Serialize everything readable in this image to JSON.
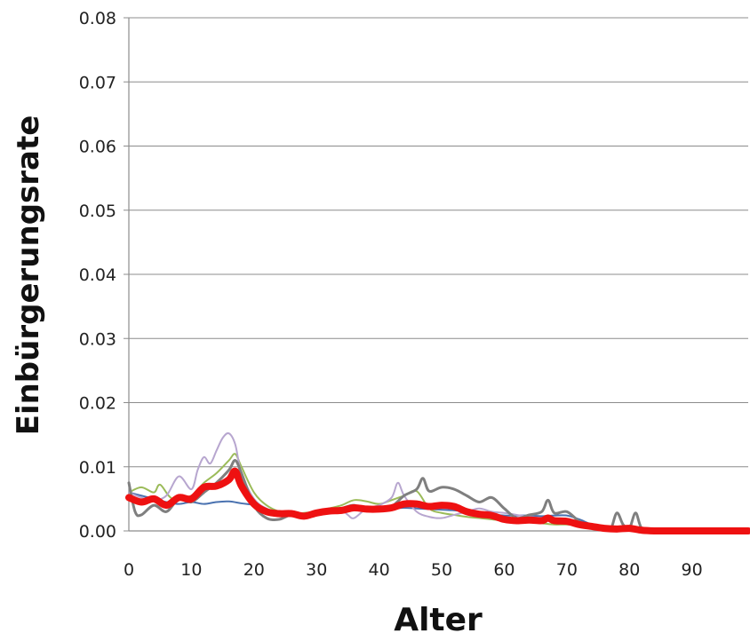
{
  "chart_data": {
    "type": "line",
    "title": "",
    "xlabel": "Alter",
    "ylabel": "Einbürgerungsrate",
    "xlim": [
      0,
      99
    ],
    "ylim": [
      0,
      0.08
    ],
    "grid": true,
    "grid_axis": "y",
    "legend": false,
    "x_ticks": [
      0,
      10,
      20,
      30,
      40,
      50,
      60,
      70,
      80,
      90
    ],
    "x_tick_labels": [
      "0",
      "10",
      "20",
      "30",
      "40",
      "50",
      "60",
      "70",
      "80",
      "90"
    ],
    "y_ticks": [
      0,
      0.01,
      0.02,
      0.03,
      0.04,
      0.05,
      0.06,
      0.07,
      0.08
    ],
    "y_tick_labels": [
      "0.00",
      "0.01",
      "0.02",
      "0.03",
      "0.04",
      "0.05",
      "0.06",
      "0.07",
      "0.08"
    ],
    "series": [
      {
        "color": "#4a72b0",
        "width": 2,
        "x": [
          0,
          2,
          4,
          6,
          8,
          10,
          12,
          14,
          16,
          18,
          20,
          22,
          24,
          26,
          28,
          30,
          32,
          34,
          36,
          38,
          40,
          42,
          44,
          46,
          48,
          50,
          52,
          54,
          56,
          58,
          60,
          62,
          64,
          66,
          68,
          70,
          72,
          74,
          76,
          78,
          80,
          82,
          84,
          86,
          88,
          90,
          95,
          99
        ],
        "y": [
          0.006,
          0.0055,
          0.005,
          0.0045,
          0.0042,
          0.0045,
          0.0042,
          0.0045,
          0.0046,
          0.0043,
          0.004,
          0.003,
          0.0028,
          0.0026,
          0.0027,
          0.0028,
          0.003,
          0.0032,
          0.0033,
          0.0034,
          0.0035,
          0.0035,
          0.0036,
          0.0035,
          0.0034,
          0.0033,
          0.0032,
          0.003,
          0.0028,
          0.0026,
          0.0024,
          0.0024,
          0.0024,
          0.0023,
          0.0024,
          0.0024,
          0.0018,
          0.001,
          0.0006,
          0.0004,
          0.0003,
          0.0002,
          0.0001,
          0.0,
          0.0,
          0.0,
          0.0,
          0.0
        ]
      },
      {
        "color": "#9bbb59",
        "width": 2,
        "x": [
          0,
          2,
          4,
          5,
          7,
          10,
          12,
          14,
          16,
          17,
          18,
          20,
          22,
          24,
          26,
          28,
          30,
          32,
          34,
          36,
          38,
          40,
          42,
          44,
          46,
          48,
          50,
          52,
          54,
          56,
          58,
          60,
          62,
          64,
          66,
          68,
          70,
          72,
          74,
          76,
          78,
          80,
          82,
          84,
          86,
          88,
          90,
          95,
          99
        ],
        "y": [
          0.006,
          0.0068,
          0.006,
          0.0072,
          0.005,
          0.0055,
          0.0075,
          0.009,
          0.011,
          0.012,
          0.01,
          0.006,
          0.004,
          0.003,
          0.0025,
          0.0028,
          0.003,
          0.0035,
          0.004,
          0.0048,
          0.0046,
          0.0042,
          0.0048,
          0.0055,
          0.0062,
          0.0035,
          0.0028,
          0.0025,
          0.0022,
          0.002,
          0.0018,
          0.0016,
          0.0015,
          0.0014,
          0.0012,
          0.001,
          0.001,
          0.0008,
          0.0006,
          0.0005,
          0.0003,
          0.0002,
          0.0001,
          0.0,
          0.0,
          0.0,
          0.0,
          0.0,
          0.0
        ]
      },
      {
        "color": "#b7a6cf",
        "width": 2,
        "x": [
          0,
          2,
          4,
          6,
          8,
          10,
          11,
          12,
          13,
          14,
          15,
          16,
          17,
          18,
          20,
          22,
          24,
          26,
          28,
          30,
          32,
          34,
          35,
          36,
          38,
          40,
          42,
          43,
          44,
          46,
          48,
          50,
          52,
          54,
          56,
          58,
          60,
          62,
          64,
          66,
          68,
          70,
          72,
          74,
          76,
          78,
          80,
          82,
          84,
          86,
          88,
          90,
          95,
          99
        ],
        "y": [
          0.006,
          0.0052,
          0.0048,
          0.0055,
          0.0085,
          0.0065,
          0.0095,
          0.0115,
          0.0105,
          0.0125,
          0.0145,
          0.0152,
          0.0135,
          0.009,
          0.005,
          0.0035,
          0.003,
          0.0028,
          0.0026,
          0.0028,
          0.003,
          0.0032,
          0.0025,
          0.002,
          0.0035,
          0.004,
          0.0052,
          0.0075,
          0.0055,
          0.003,
          0.0022,
          0.002,
          0.0025,
          0.003,
          0.0035,
          0.003,
          0.0028,
          0.0025,
          0.0022,
          0.002,
          0.0018,
          0.0015,
          0.001,
          0.0008,
          0.0006,
          0.0004,
          0.0003,
          0.0002,
          0.0001,
          0.0,
          0.0,
          0.0,
          0.0,
          0.0
        ]
      },
      {
        "color": "#7f7f7f",
        "width": 3,
        "x": [
          0,
          1,
          2,
          4,
          6,
          8,
          10,
          12,
          14,
          16,
          17,
          18,
          20,
          22,
          24,
          26,
          28,
          30,
          32,
          34,
          36,
          38,
          40,
          42,
          44,
          46,
          47,
          48,
          50,
          52,
          54,
          56,
          58,
          60,
          62,
          64,
          66,
          67,
          68,
          70,
          72,
          74,
          76,
          77,
          78,
          79,
          80,
          81,
          82,
          84,
          86,
          88,
          90,
          95,
          99
        ],
        "y": [
          0.0075,
          0.003,
          0.0025,
          0.004,
          0.003,
          0.005,
          0.0045,
          0.006,
          0.0075,
          0.0095,
          0.011,
          0.009,
          0.004,
          0.002,
          0.0018,
          0.0025,
          0.002,
          0.0025,
          0.003,
          0.0035,
          0.004,
          0.0032,
          0.0035,
          0.0038,
          0.0055,
          0.0065,
          0.0082,
          0.0062,
          0.0068,
          0.0065,
          0.0055,
          0.0045,
          0.0052,
          0.0035,
          0.002,
          0.0025,
          0.003,
          0.0048,
          0.0028,
          0.003,
          0.0015,
          0.0008,
          0.0004,
          0.0002,
          0.0028,
          0.001,
          0.0004,
          0.0028,
          0.0004,
          0.0002,
          0.0001,
          0.0,
          0.0,
          0.0,
          0.0
        ]
      },
      {
        "color": "#ee1111",
        "width": 8,
        "x": [
          0,
          2,
          4,
          6,
          8,
          10,
          12,
          14,
          16,
          17,
          18,
          20,
          22,
          24,
          26,
          28,
          30,
          32,
          34,
          36,
          38,
          40,
          42,
          44,
          46,
          48,
          50,
          52,
          54,
          56,
          58,
          60,
          62,
          64,
          66,
          67,
          68,
          70,
          72,
          74,
          76,
          78,
          80,
          82,
          84,
          86,
          88,
          90,
          95,
          99
        ],
        "y": [
          0.0052,
          0.0045,
          0.005,
          0.004,
          0.0052,
          0.005,
          0.0068,
          0.007,
          0.008,
          0.0093,
          0.007,
          0.0042,
          0.003,
          0.0027,
          0.0027,
          0.0023,
          0.0028,
          0.0031,
          0.0032,
          0.0036,
          0.0034,
          0.0034,
          0.0036,
          0.0042,
          0.0042,
          0.0038,
          0.004,
          0.0038,
          0.003,
          0.0026,
          0.0024,
          0.0018,
          0.0016,
          0.0017,
          0.0016,
          0.002,
          0.0016,
          0.0015,
          0.001,
          0.0007,
          0.0004,
          0.0003,
          0.0004,
          0.0001,
          0.0,
          0.0,
          0.0,
          0.0,
          0.0,
          0.0
        ]
      }
    ]
  }
}
